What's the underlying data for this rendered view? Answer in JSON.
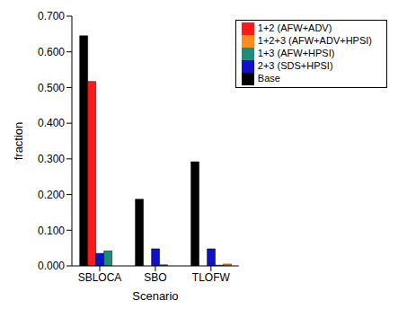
{
  "chart_data": {
    "type": "bar",
    "x_label": "Scenario",
    "y_label": "fraction",
    "categories": [
      "SBLOCA",
      "SBO",
      "TLOFW"
    ],
    "series": [
      {
        "name": "Base",
        "color": "#000000",
        "values": [
          0.645,
          0.187,
          0.292
        ]
      },
      {
        "name": "1+2 (AFW+ADV)",
        "color": "#ff1a1a",
        "values": [
          0.517,
          0,
          0
        ]
      },
      {
        "name": "2+3 (SDS+HPSI)",
        "color": "#1010c8",
        "values": [
          0.035,
          0.048,
          0.048
        ]
      },
      {
        "name": "1+3 (AFW+HPSI)",
        "color": "#1f8c7a",
        "values": [
          0.042,
          0.003,
          0.002
        ]
      },
      {
        "name": "1+2+3 (AFW+ADV+HPSI)",
        "color": "#ff8c1a",
        "values": [
          0,
          0,
          0.005
        ]
      }
    ],
    "ylim": [
      0,
      0.7
    ],
    "yticks": [
      {
        "value": 0,
        "label": "0.000"
      },
      {
        "value": 0.1,
        "label": "0.100"
      },
      {
        "value": 0.2,
        "label": "0.200"
      },
      {
        "value": 0.3,
        "label": "0.300"
      },
      {
        "value": 0.4,
        "label": "0.400"
      },
      {
        "value": 0.5,
        "label": "0.500"
      },
      {
        "value": 0.6,
        "label": "0.600"
      },
      {
        "value": 0.7,
        "label": "0.700"
      }
    ],
    "grid": false,
    "legend": "upper right"
  }
}
